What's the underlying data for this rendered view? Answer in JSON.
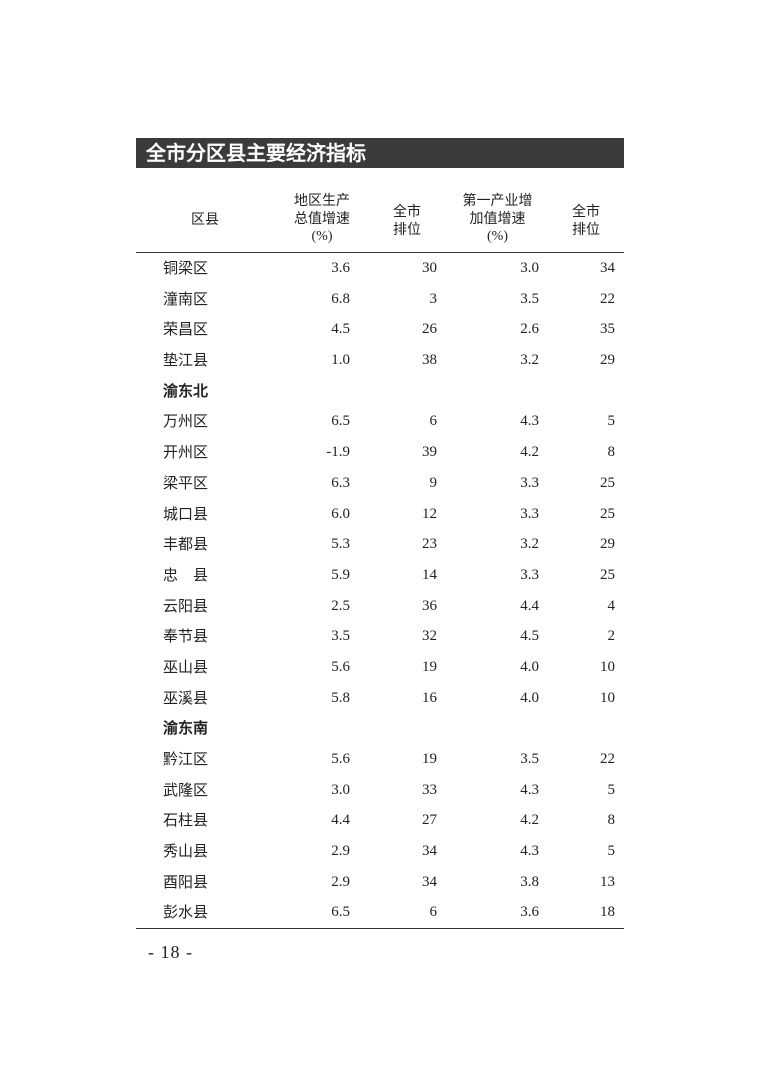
{
  "title": "全市分区县主要经济指标",
  "headers": {
    "district": "区县",
    "gdp_growth": [
      "地区生产",
      "总值增速",
      "(%)"
    ],
    "gdp_rank": [
      "全市",
      "排位"
    ],
    "primary_growth": [
      "第一产业增",
      "加值增速",
      "(%)"
    ],
    "primary_rank": [
      "全市",
      "排位"
    ]
  },
  "rows": [
    {
      "name": "铜梁区",
      "gdp": "3.6",
      "gdp_rank": "30",
      "pri": "3.0",
      "pri_rank": "34"
    },
    {
      "name": "潼南区",
      "gdp": "6.8",
      "gdp_rank": "3",
      "pri": "3.5",
      "pri_rank": "22"
    },
    {
      "name": "荣昌区",
      "gdp": "4.5",
      "gdp_rank": "26",
      "pri": "2.6",
      "pri_rank": "35"
    },
    {
      "name": "垫江县",
      "gdp": "1.0",
      "gdp_rank": "38",
      "pri": "3.2",
      "pri_rank": "29"
    },
    {
      "name": "渝东北",
      "group": true
    },
    {
      "name": "万州区",
      "gdp": "6.5",
      "gdp_rank": "6",
      "pri": "4.3",
      "pri_rank": "5"
    },
    {
      "name": "开州区",
      "gdp": "-1.9",
      "gdp_rank": "39",
      "pri": "4.2",
      "pri_rank": "8"
    },
    {
      "name": "梁平区",
      "gdp": "6.3",
      "gdp_rank": "9",
      "pri": "3.3",
      "pri_rank": "25"
    },
    {
      "name": "城口县",
      "gdp": "6.0",
      "gdp_rank": "12",
      "pri": "3.3",
      "pri_rank": "25"
    },
    {
      "name": "丰都县",
      "gdp": "5.3",
      "gdp_rank": "23",
      "pri": "3.2",
      "pri_rank": "29"
    },
    {
      "name": "忠　县",
      "gdp": "5.9",
      "gdp_rank": "14",
      "pri": "3.3",
      "pri_rank": "25"
    },
    {
      "name": "云阳县",
      "gdp": "2.5",
      "gdp_rank": "36",
      "pri": "4.4",
      "pri_rank": "4"
    },
    {
      "name": "奉节县",
      "gdp": "3.5",
      "gdp_rank": "32",
      "pri": "4.5",
      "pri_rank": "2"
    },
    {
      "name": "巫山县",
      "gdp": "5.6",
      "gdp_rank": "19",
      "pri": "4.0",
      "pri_rank": "10"
    },
    {
      "name": "巫溪县",
      "gdp": "5.8",
      "gdp_rank": "16",
      "pri": "4.0",
      "pri_rank": "10"
    },
    {
      "name": "渝东南",
      "group": true
    },
    {
      "name": "黔江区",
      "gdp": "5.6",
      "gdp_rank": "19",
      "pri": "3.5",
      "pri_rank": "22"
    },
    {
      "name": "武隆区",
      "gdp": "3.0",
      "gdp_rank": "33",
      "pri": "4.3",
      "pri_rank": "5"
    },
    {
      "name": "石柱县",
      "gdp": "4.4",
      "gdp_rank": "27",
      "pri": "4.2",
      "pri_rank": "8"
    },
    {
      "name": "秀山县",
      "gdp": "2.9",
      "gdp_rank": "34",
      "pri": "4.3",
      "pri_rank": "5"
    },
    {
      "name": "酉阳县",
      "gdp": "2.9",
      "gdp_rank": "34",
      "pri": "3.8",
      "pri_rank": "13"
    },
    {
      "name": "彭水县",
      "gdp": "6.5",
      "gdp_rank": "6",
      "pri": "3.6",
      "pri_rank": "18"
    }
  ],
  "page_number": "- 18 -",
  "colors": {
    "title_bar": "#3b3b3b",
    "title_text": "#ffffff",
    "text": "#222222"
  }
}
